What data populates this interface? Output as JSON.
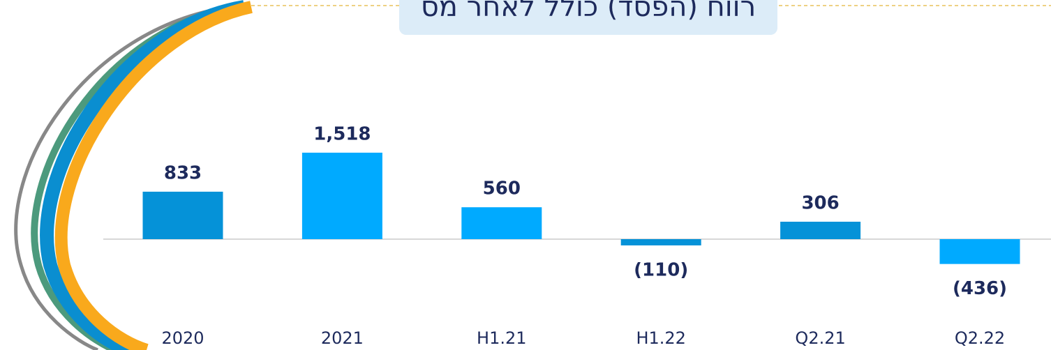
{
  "chart_data": {
    "type": "bar",
    "title": "רווח (הפסד) כולל לאחר מס",
    "categories": [
      "2020",
      "2021",
      "H1.21",
      "H1.22",
      "Q2.21",
      "Q2.22"
    ],
    "values": [
      833,
      1518,
      560,
      -110,
      306,
      -436
    ],
    "value_labels": [
      "833",
      "1,518",
      "560",
      "(110)",
      "306",
      "(436)"
    ],
    "colors": [
      "#0592d8",
      "#00aaff",
      "#00aaff",
      "#0592d8",
      "#0592d8",
      "#00aaff"
    ]
  }
}
